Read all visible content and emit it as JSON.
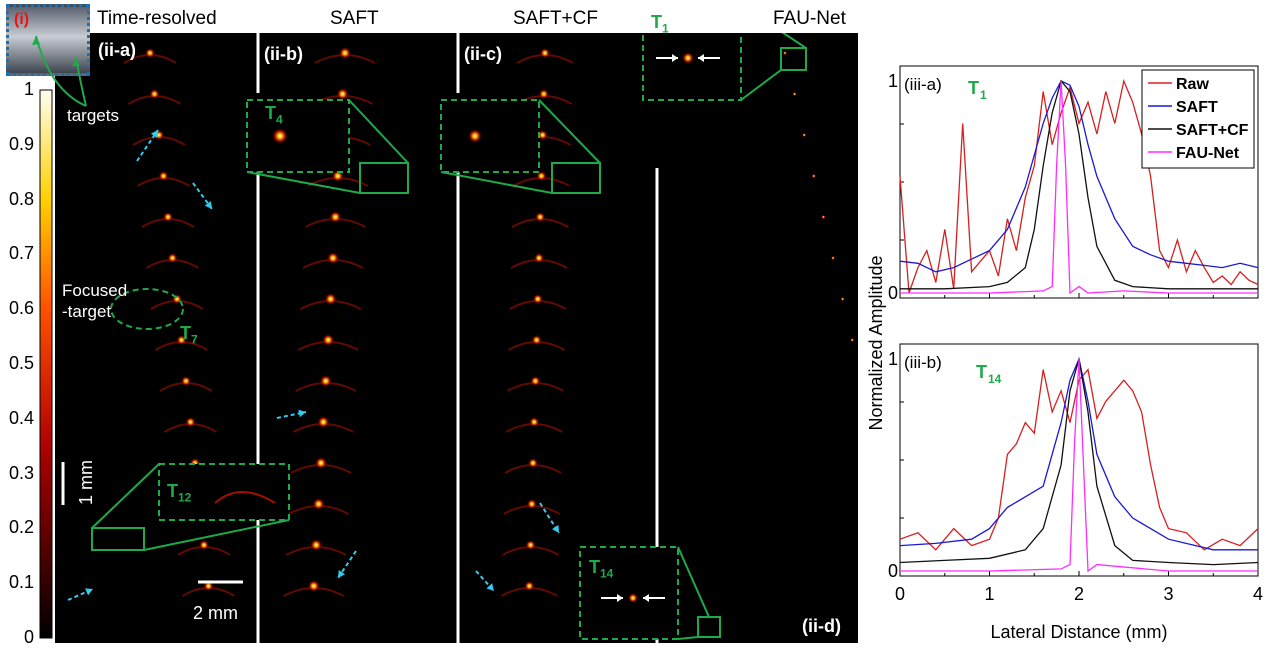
{
  "panel_titles": {
    "time_resolved": "Time-resolved",
    "saft": "SAFT",
    "saft_cf": "SAFT+CF",
    "fau_net": "FAU-Net"
  },
  "panel_labels": {
    "i": "(i)",
    "ii_a": "(ii-a)",
    "ii_b": "(ii-b)",
    "ii_c": "(ii-c)",
    "ii_d": "(ii-d)"
  },
  "annotations": {
    "targets": "targets",
    "focused_target_line1": "Focused",
    "focused_target_line2": "-target",
    "t7": "T",
    "t7_sub": "7",
    "t12": "T",
    "t12_sub": "12",
    "t4": "T",
    "t4_sub": "4",
    "t1": "T",
    "t1_sub": "1",
    "t14": "T",
    "t14_sub": "14",
    "scale_vertical": "1 mm",
    "scale_horizontal": "2 mm"
  },
  "colorbar": {
    "ticks": [
      "1",
      "0.9",
      "0.8",
      "0.7",
      "0.6",
      "0.5",
      "0.4",
      "0.3",
      "0.2",
      "0.1",
      "0"
    ],
    "colormap": "hot"
  },
  "colors": {
    "raw": "#d62020",
    "saft": "#1a1ad6",
    "saft_cf": "#111111",
    "fau_net": "#ff2cff",
    "annotation_green": "#1faa4a",
    "arrow_cyan": "#33ccee"
  },
  "chart_data": [
    {
      "type": "line",
      "panel": "(iii-a)",
      "target_label": "T",
      "target_sub": "1",
      "xlabel": "Lateral Distance (mm)",
      "ylabel": "Normalized Amplitude",
      "xlim": [
        0,
        4
      ],
      "ylim": [
        0,
        1
      ],
      "xticks": [
        "0",
        "1",
        "2",
        "3",
        "4"
      ],
      "yticks": [
        "0",
        "1"
      ],
      "legend_position": "top-right",
      "series": [
        {
          "name": "Raw",
          "color": "#d62020",
          "x": [
            0,
            0.1,
            0.2,
            0.3,
            0.4,
            0.5,
            0.6,
            0.7,
            0.8,
            0.9,
            1.0,
            1.1,
            1.2,
            1.3,
            1.4,
            1.5,
            1.6,
            1.7,
            1.8,
            1.9,
            2.0,
            2.1,
            2.2,
            2.3,
            2.4,
            2.5,
            2.6,
            2.7,
            2.8,
            2.9,
            3.0,
            3.1,
            3.2,
            3.3,
            3.4,
            3.5,
            3.6,
            3.7,
            3.8,
            3.9,
            4.0
          ],
          "y": [
            0.55,
            0.0,
            0.12,
            0.2,
            0.05,
            0.3,
            0.02,
            0.8,
            0.1,
            0.15,
            0.2,
            0.08,
            0.35,
            0.2,
            0.45,
            0.6,
            0.95,
            0.7,
            0.85,
            0.97,
            0.8,
            0.9,
            0.75,
            0.95,
            0.8,
            1.0,
            0.9,
            0.75,
            0.55,
            0.2,
            0.12,
            0.25,
            0.1,
            0.2,
            0.12,
            0.05,
            0.08,
            0.04,
            0.1,
            0.06,
            0.04
          ]
        },
        {
          "name": "SAFT",
          "color": "#1a1ad6",
          "x": [
            0,
            0.2,
            0.4,
            0.6,
            0.8,
            1.0,
            1.2,
            1.4,
            1.6,
            1.7,
            1.8,
            1.9,
            2.0,
            2.1,
            2.2,
            2.4,
            2.6,
            2.8,
            3.0,
            3.2,
            3.4,
            3.6,
            3.8,
            4.0
          ],
          "y": [
            0.15,
            0.14,
            0.1,
            0.12,
            0.16,
            0.2,
            0.3,
            0.5,
            0.8,
            0.92,
            1.0,
            0.98,
            0.88,
            0.7,
            0.55,
            0.35,
            0.22,
            0.18,
            0.15,
            0.14,
            0.13,
            0.12,
            0.14,
            0.12
          ]
        },
        {
          "name": "SAFT+CF",
          "color": "#111111",
          "x": [
            0,
            0.5,
            1.0,
            1.2,
            1.4,
            1.5,
            1.6,
            1.7,
            1.8,
            1.9,
            2.0,
            2.1,
            2.2,
            2.4,
            2.6,
            3.0,
            3.5,
            4.0
          ],
          "y": [
            0.02,
            0.02,
            0.03,
            0.05,
            0.12,
            0.3,
            0.6,
            0.85,
            1.0,
            0.95,
            0.75,
            0.45,
            0.22,
            0.06,
            0.03,
            0.02,
            0.02,
            0.02
          ]
        },
        {
          "name": "FAU-Net",
          "color": "#ff2cff",
          "x": [
            0,
            1.0,
            1.6,
            1.7,
            1.75,
            1.8,
            1.85,
            1.9,
            2.0,
            2.1,
            2.5,
            3.0,
            4.0
          ],
          "y": [
            0.0,
            0.0,
            0.01,
            0.03,
            0.6,
            1.0,
            0.6,
            0.0,
            0.03,
            0.0,
            0.01,
            0.0,
            0.0
          ]
        }
      ]
    },
    {
      "type": "line",
      "panel": "(iii-b)",
      "target_label": "T",
      "target_sub": "14",
      "xlabel": "Lateral Distance (mm)",
      "ylabel": "Normalized Amplitude",
      "xlim": [
        0,
        4
      ],
      "ylim": [
        0,
        1
      ],
      "xticks": [
        "0",
        "1",
        "2",
        "3",
        "4"
      ],
      "yticks": [
        "0",
        "1"
      ],
      "series": [
        {
          "name": "Raw",
          "color": "#d62020",
          "x": [
            0,
            0.2,
            0.4,
            0.6,
            0.8,
            1.0,
            1.1,
            1.2,
            1.3,
            1.4,
            1.5,
            1.6,
            1.7,
            1.8,
            1.9,
            2.0,
            2.1,
            2.2,
            2.3,
            2.4,
            2.5,
            2.6,
            2.7,
            2.8,
            2.9,
            3.0,
            3.2,
            3.4,
            3.6,
            3.8,
            4.0
          ],
          "y": [
            0.15,
            0.18,
            0.1,
            0.2,
            0.12,
            0.15,
            0.25,
            0.55,
            0.6,
            0.7,
            0.65,
            0.95,
            0.75,
            0.85,
            0.7,
            0.9,
            0.95,
            0.72,
            0.8,
            0.85,
            0.9,
            0.85,
            0.75,
            0.5,
            0.3,
            0.2,
            0.18,
            0.1,
            0.15,
            0.12,
            0.2
          ]
        },
        {
          "name": "SAFT",
          "color": "#1a1ad6",
          "x": [
            0,
            0.4,
            0.8,
            1.0,
            1.2,
            1.4,
            1.6,
            1.8,
            1.9,
            2.0,
            2.1,
            2.2,
            2.4,
            2.6,
            2.8,
            3.0,
            3.5,
            4.0
          ],
          "y": [
            0.12,
            0.13,
            0.15,
            0.2,
            0.3,
            0.35,
            0.4,
            0.7,
            0.9,
            1.0,
            0.8,
            0.55,
            0.35,
            0.25,
            0.2,
            0.15,
            0.1,
            0.1
          ]
        },
        {
          "name": "SAFT+CF",
          "color": "#111111",
          "x": [
            0,
            0.5,
            1.0,
            1.4,
            1.6,
            1.8,
            1.9,
            2.0,
            2.1,
            2.2,
            2.4,
            2.6,
            3.0,
            3.5,
            4.0
          ],
          "y": [
            0.04,
            0.05,
            0.06,
            0.1,
            0.2,
            0.5,
            0.85,
            1.0,
            0.75,
            0.4,
            0.12,
            0.05,
            0.04,
            0.03,
            0.04
          ]
        },
        {
          "name": "FAU-Net",
          "color": "#ff2cff",
          "x": [
            0,
            1.0,
            1.8,
            1.9,
            1.95,
            2.0,
            2.05,
            2.1,
            2.2,
            3.0,
            4.0
          ],
          "y": [
            0.0,
            0.0,
            0.01,
            0.03,
            0.6,
            1.0,
            0.5,
            0.0,
            0.03,
            0.0,
            0.0
          ]
        }
      ]
    }
  ]
}
